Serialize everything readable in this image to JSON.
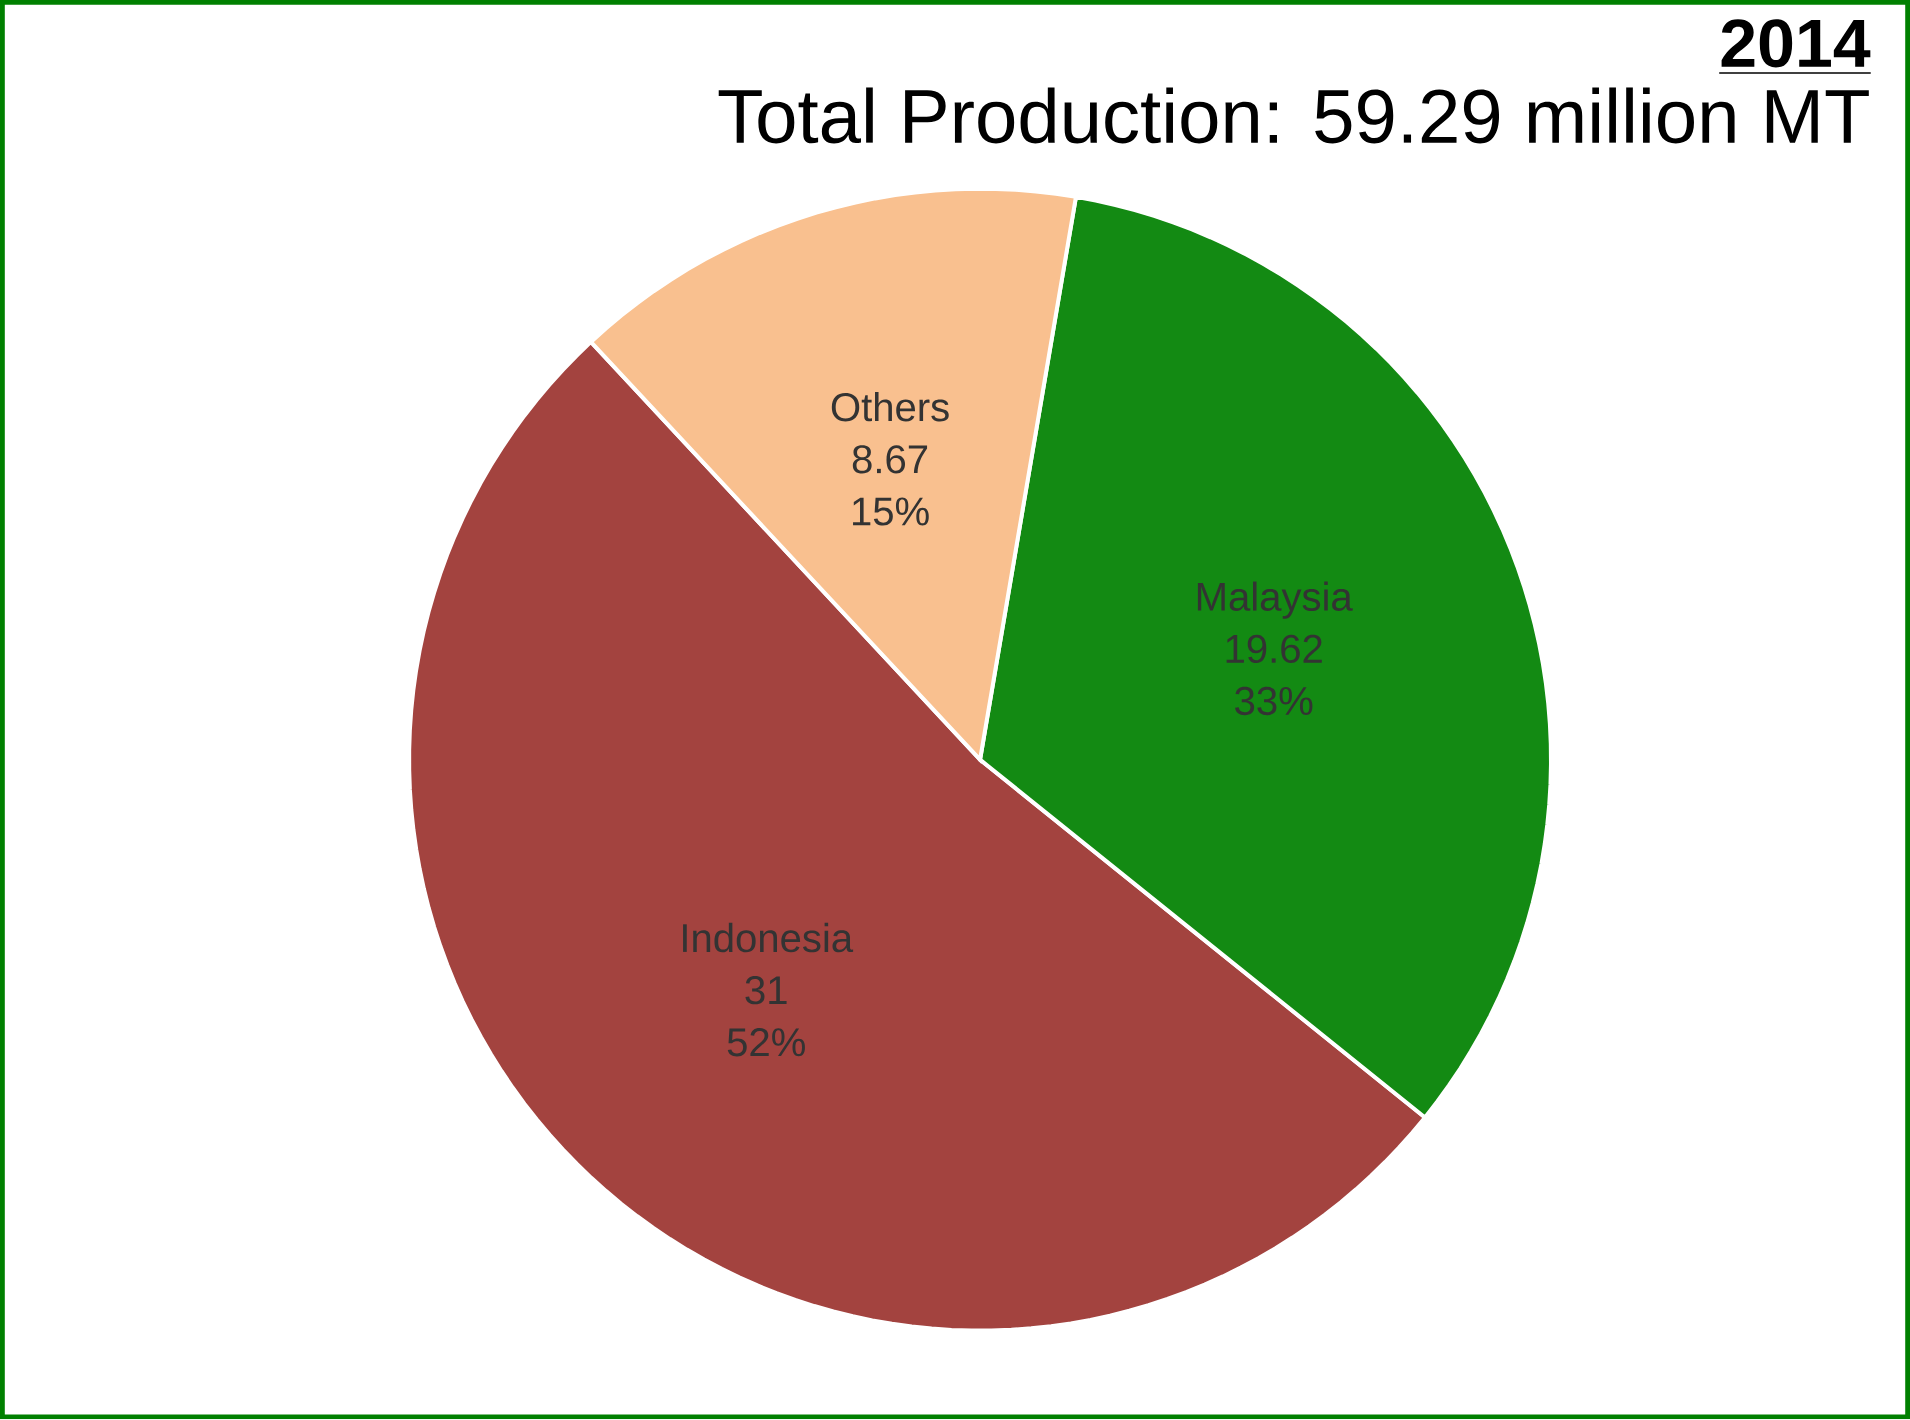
{
  "chart_data": {
    "type": "pie",
    "title": "2014",
    "subtitle": "Total Production: 59.29 million MT",
    "categories": [
      "Indonesia",
      "Malaysia",
      "Others"
    ],
    "values": [
      31,
      19.62,
      8.67
    ],
    "data_labels": true,
    "colors": [
      "#a3433f",
      "#138a13",
      "#f9c08f"
    ],
    "annotations": [
      "52%",
      "33%",
      "15%"
    ]
  }
}
